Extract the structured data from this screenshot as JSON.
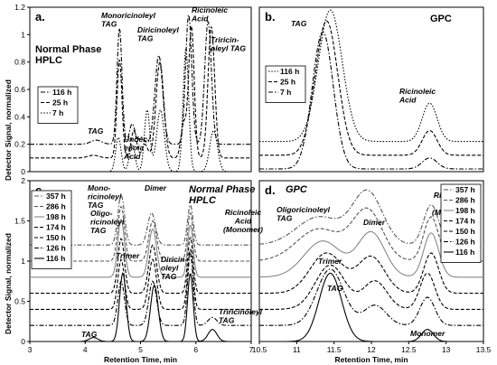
{
  "chart_data": [
    {
      "panel": "a.",
      "type": "line",
      "title": "Normal Phase HPLC",
      "xlabel": "",
      "ylabel": "",
      "xlim": [
        3,
        7
      ],
      "ylim": [
        0,
        1.2
      ],
      "yticks": [
        "0",
        "0.2",
        "0.4",
        "0.6",
        "0.8",
        "1",
        "1.2"
      ],
      "xticks": [],
      "legend": {
        "position": "left",
        "entries": [
          "116 h",
          "25 h",
          "7 h"
        ]
      },
      "annotations": [
        "Monoricinoleyl TAG",
        "Diricinoleyl TAG",
        "Ricinoleic Acid",
        "Triricin-oleyl TAG",
        "TAG",
        "Undec-enoic Acid"
      ],
      "series": [
        {
          "name": "116 h",
          "style": "dashdot",
          "offset": 0.2,
          "peaks": [
            [
              4.2,
              0.03,
              0.1
            ],
            [
              4.62,
              0.85,
              0.045
            ],
            [
              4.85,
              0.15,
              0.05
            ],
            [
              5.02,
              0.05,
              0.05
            ],
            [
              5.33,
              0.65,
              0.07
            ],
            [
              5.87,
              0.95,
              0.055
            ],
            [
              6.22,
              0.9,
              0.06
            ]
          ]
        },
        {
          "name": "25 h",
          "style": "dashed",
          "offset": 0.1,
          "peaks": [
            [
              4.15,
              0.02,
              0.1
            ],
            [
              4.62,
              0.72,
              0.045
            ],
            [
              4.88,
              0.2,
              0.05
            ],
            [
              5.08,
              0.1,
              0.05
            ],
            [
              5.35,
              0.7,
              0.07
            ],
            [
              5.78,
              0.25,
              0.05
            ],
            [
              5.92,
              0.96,
              0.05
            ],
            [
              6.28,
              0.96,
              0.06
            ]
          ]
        },
        {
          "name": "7 h",
          "style": "dotted",
          "offset": 0.0,
          "peaks": [
            [
              4.6,
              0.25,
              0.05
            ],
            [
              4.85,
              0.2,
              0.05
            ],
            [
              5.12,
              0.45,
              0.05
            ],
            [
              5.36,
              0.45,
              0.07
            ],
            [
              5.82,
              0.9,
              0.05
            ],
            [
              6.32,
              0.3,
              0.07
            ]
          ]
        }
      ]
    },
    {
      "panel": "b.",
      "type": "line",
      "title": "GPC",
      "xlabel": "",
      "ylabel": "",
      "xlim": [
        10.5,
        13.5
      ],
      "ylim": [
        0,
        1.2
      ],
      "yticks": [],
      "xticks": [],
      "legend": {
        "position": "left",
        "entries": [
          "116 h",
          "25 h",
          "7 h"
        ]
      },
      "annotations": [
        "TAG",
        "Ricinoleic Acid"
      ],
      "series": [
        {
          "name": "116 h",
          "style": "dotted",
          "offset": 0.22,
          "peaks": [
            [
              11.45,
              0.96,
              0.16
            ],
            [
              12.78,
              0.28,
              0.1
            ]
          ]
        },
        {
          "name": "25 h",
          "style": "dashed",
          "offset": 0.12,
          "peaks": [
            [
              11.4,
              0.98,
              0.15
            ],
            [
              12.78,
              0.18,
              0.1
            ]
          ]
        },
        {
          "name": "7 h",
          "style": "dashdot",
          "offset": 0.02,
          "peaks": [
            [
              11.35,
              1.0,
              0.14
            ],
            [
              12.78,
              0.08,
              0.1
            ]
          ]
        }
      ]
    },
    {
      "panel": "c.",
      "type": "line",
      "title": "Normal Phase HPLC",
      "xlabel": "Retention Time, min",
      "ylabel": "",
      "xlim": [
        3,
        7
      ],
      "ylim": [
        0,
        2
      ],
      "yticks": [
        "0",
        "0.5",
        "1",
        "1.5",
        "2"
      ],
      "xticks": [
        "3",
        "4",
        "5",
        "6",
        "7"
      ],
      "legend": {
        "position": "left",
        "entries": [
          "357 h",
          "286 h",
          "198 h",
          "174 h",
          "150 h",
          "126 h",
          "116 h"
        ]
      },
      "annotations": [
        "Mono-ricinoleyl TAG",
        "Trimer",
        "Dimer",
        "Oligo-ricinoleyl TAG",
        "Ricinoleic Acid (Monomer)",
        "Diricin-oleyl TAG",
        "TAG",
        "Triricinoleyl TAG"
      ],
      "series": [
        {
          "name": "357 h",
          "style": "dashdot",
          "color": "#555555",
          "offset": 1.2,
          "peaks": [
            [
              4.65,
              0.62,
              0.06
            ],
            [
              5.2,
              0.4,
              0.07
            ],
            [
              5.9,
              0.5,
              0.05
            ]
          ]
        },
        {
          "name": "286 h",
          "style": "dashed",
          "color": "#555555",
          "offset": 1.0,
          "peaks": [
            [
              4.65,
              0.68,
              0.06
            ],
            [
              5.22,
              0.5,
              0.07
            ],
            [
              5.9,
              0.6,
              0.05
            ]
          ]
        },
        {
          "name": "198 h",
          "style": "solid",
          "color": "#888888",
          "offset": 0.8,
          "peaks": [
            [
              4.65,
              0.72,
              0.06
            ],
            [
              5.22,
              0.6,
              0.07
            ],
            [
              5.9,
              0.65,
              0.05
            ]
          ]
        },
        {
          "name": "174 h",
          "style": "dashed",
          "color": "#000000",
          "offset": 0.6,
          "peaks": [
            [
              4.65,
              0.68,
              0.06
            ],
            [
              5.22,
              0.6,
              0.07
            ],
            [
              5.9,
              0.7,
              0.05
            ]
          ]
        },
        {
          "name": "150 h",
          "style": "dashed",
          "color": "#000000",
          "offset": 0.4,
          "peaks": [
            [
              4.65,
              0.62,
              0.06
            ],
            [
              5.22,
              0.62,
              0.07
            ],
            [
              5.9,
              0.75,
              0.05
            ]
          ]
        },
        {
          "name": "126 h",
          "style": "dashdot",
          "color": "#000000",
          "offset": 0.2,
          "peaks": [
            [
              4.65,
              0.55,
              0.06
            ],
            [
              5.22,
              0.55,
              0.07
            ],
            [
              5.9,
              0.9,
              0.05
            ],
            [
              6.3,
              0.1,
              0.08
            ]
          ]
        },
        {
          "name": "116 h",
          "style": "solid",
          "color": "#000000",
          "offset": 0.0,
          "peaks": [
            [
              4.15,
              0.05,
              0.08
            ],
            [
              4.68,
              0.85,
              0.06
            ],
            [
              5.25,
              0.7,
              0.07
            ],
            [
              5.9,
              0.85,
              0.05
            ],
            [
              6.3,
              0.15,
              0.08
            ]
          ]
        }
      ]
    },
    {
      "panel": "d.",
      "type": "line",
      "title": "GPC",
      "xlabel": "Retention Time, min",
      "ylabel": "",
      "xlim": [
        10.5,
        13.5
      ],
      "ylim": [
        0,
        2
      ],
      "yticks": [],
      "xticks": [
        "10.5",
        "11",
        "11.5",
        "12",
        "12.5",
        "13",
        "13.5"
      ],
      "legend": {
        "position": "right",
        "entries": [
          "357 h",
          "286 h",
          "198 h",
          "174 h",
          "150 h",
          "126 h",
          "116 h"
        ]
      },
      "annotations": [
        "Oligoricinoleyl TAG",
        "Trimer",
        "Dimer",
        "Ricinoleic Acid (Monomer)",
        "TAG",
        "Monomer"
      ],
      "series": [
        {
          "name": "357 h",
          "style": "dashdot",
          "color": "#555555",
          "offset": 1.2,
          "peaks": [
            [
              11.3,
              0.35,
              0.3
            ],
            [
              11.95,
              0.65,
              0.2
            ],
            [
              12.8,
              0.5,
              0.1
            ]
          ]
        },
        {
          "name": "286 h",
          "style": "dashed",
          "color": "#555555",
          "offset": 1.0,
          "peaks": [
            [
              11.3,
              0.4,
              0.3
            ],
            [
              11.95,
              0.62,
              0.2
            ],
            [
              12.8,
              0.55,
              0.1
            ]
          ]
        },
        {
          "name": "198 h",
          "style": "solid",
          "color": "#888888",
          "offset": 0.8,
          "peaks": [
            [
              11.35,
              0.45,
              0.25
            ],
            [
              12.0,
              0.55,
              0.18
            ],
            [
              12.8,
              0.55,
              0.1
            ]
          ]
        },
        {
          "name": "174 h",
          "style": "dashed",
          "color": "#000000",
          "offset": 0.6,
          "peaks": [
            [
              11.4,
              0.5,
              0.22
            ],
            [
              12.0,
              0.45,
              0.18
            ],
            [
              12.8,
              0.5,
              0.1
            ]
          ]
        },
        {
          "name": "150 h",
          "style": "dashed",
          "color": "#000000",
          "offset": 0.4,
          "peaks": [
            [
              11.45,
              0.55,
              0.2
            ],
            [
              12.05,
              0.35,
              0.16
            ],
            [
              12.75,
              0.45,
              0.1
            ]
          ]
        },
        {
          "name": "126 h",
          "style": "dashdot",
          "color": "#000000",
          "offset": 0.2,
          "peaks": [
            [
              11.45,
              0.7,
              0.18
            ],
            [
              12.05,
              0.25,
              0.15
            ],
            [
              12.75,
              0.35,
              0.1
            ]
          ]
        },
        {
          "name": "116 h",
          "style": "solid",
          "color": "#000000",
          "offset": 0.0,
          "peaks": [
            [
              11.45,
              0.85,
              0.15
            ],
            [
              12.75,
              0.15,
              0.08
            ]
          ]
        }
      ]
    }
  ],
  "shared_ylabel": "Detector Signal, normalized"
}
